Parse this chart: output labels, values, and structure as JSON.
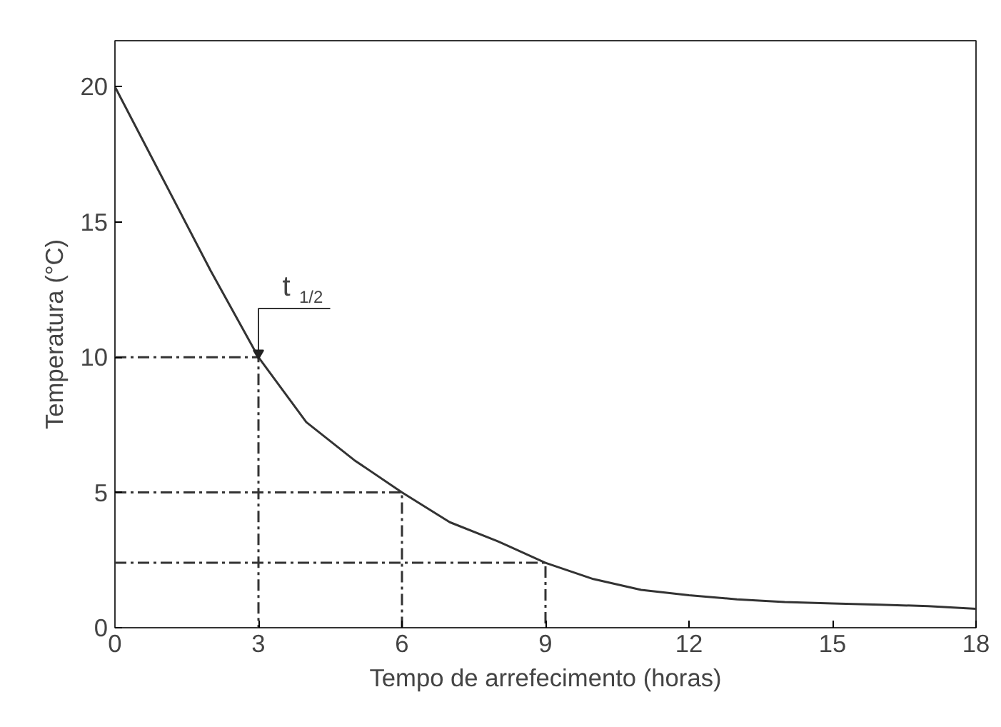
{
  "chart_data": {
    "type": "line",
    "xlabel": "Tempo de arrefecimento (horas)",
    "ylabel": "Temperatura (°C)",
    "xlim": [
      0,
      18
    ],
    "ylim": [
      0,
      21.7
    ],
    "xticks": [
      0,
      3,
      6,
      9,
      12,
      15,
      18
    ],
    "yticks": [
      0,
      5,
      10,
      15,
      20
    ],
    "grid": false,
    "series": [
      {
        "color": "#333333",
        "line_style": "solid",
        "x": [
          0,
          1,
          2,
          3,
          4,
          5,
          6,
          7,
          8,
          9,
          10,
          11,
          12,
          13,
          14,
          15,
          16,
          17,
          18
        ],
        "values": [
          20,
          16.6,
          13.2,
          10,
          7.6,
          6.2,
          5,
          3.9,
          3.2,
          2.4,
          1.8,
          1.4,
          1.2,
          1.05,
          0.95,
          0.9,
          0.85,
          0.8,
          0.7
        ]
      },
      {
        "color": "#333333",
        "line_style": "dashed",
        "x": [
          0,
          3,
          3
        ],
        "values": [
          10,
          10,
          0
        ]
      },
      {
        "color": "#333333",
        "line_style": "dashed",
        "x": [
          0,
          6,
          6
        ],
        "values": [
          5,
          5,
          0
        ]
      },
      {
        "color": "#333333",
        "line_style": "dashed",
        "x": [
          0,
          9,
          9
        ],
        "values": [
          2.4,
          2.4,
          0
        ]
      }
    ],
    "annotations": [
      {
        "text": "t$_{1/2}$",
        "x": 3,
        "y": 10
      }
    ]
  }
}
